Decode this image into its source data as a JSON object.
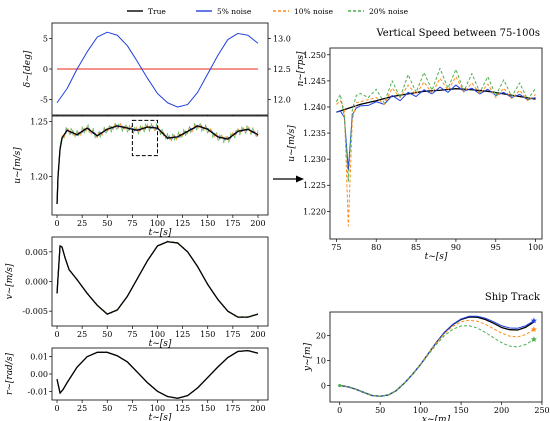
{
  "legend": [
    {
      "name": "True",
      "color": "#000000",
      "dash": "solid"
    },
    {
      "name": "5% noise",
      "color": "#1f3fe0",
      "dash": "solid"
    },
    {
      "name": "10% noise",
      "color": "#ff8c1a",
      "dash": "dashed"
    },
    {
      "name": "20% noise",
      "color": "#4caf50",
      "dash": "dashed"
    }
  ],
  "colors": {
    "delta": "#e8261c",
    "rps": "#1f3fe0"
  },
  "chart_data": [
    {
      "type": "line",
      "id": "delta-n",
      "title": "",
      "xlabel": "t~[s]",
      "ylabel": "δ~[deg]",
      "ylabel_right": "n~[rps]",
      "xlim": [
        -5,
        210
      ],
      "ylim": [
        -7.5,
        7.5
      ],
      "ylim_right": [
        11.75,
        13.25
      ],
      "xticks": [
        "0",
        "25",
        "50",
        "75",
        "100",
        "125",
        "150",
        "175",
        "200"
      ],
      "yticks": [
        "-5",
        "0",
        "5"
      ],
      "yticks_right": [
        "12.0",
        "12.5",
        "13.0"
      ],
      "series": [
        {
          "name": "δ",
          "x": [
            0,
            200
          ],
          "y": [
            0,
            0
          ]
        },
        {
          "name": "n",
          "x": [
            0,
            10,
            20,
            30,
            40,
            50,
            60,
            70,
            80,
            90,
            100,
            110,
            120,
            130,
            140,
            150,
            160,
            170,
            180,
            190,
            200
          ],
          "y": [
            11.95,
            12.18,
            12.5,
            12.78,
            13.02,
            13.1,
            13.05,
            12.88,
            12.62,
            12.35,
            12.1,
            11.95,
            11.88,
            11.92,
            12.12,
            12.42,
            12.72,
            12.98,
            13.08,
            13.05,
            12.92
          ]
        }
      ]
    },
    {
      "type": "line",
      "id": "u",
      "title": "",
      "xlabel": "t~[s]",
      "ylabel": "u~[m/s]",
      "xlim": [
        -5,
        210
      ],
      "ylim": [
        1.165,
        1.255
      ],
      "xticks": [
        "0",
        "25",
        "50",
        "75",
        "100",
        "125",
        "150",
        "175",
        "200"
      ],
      "yticks": [
        "1.20",
        "1.25"
      ],
      "series": [
        {
          "name": "True",
          "x": [
            0,
            1,
            3,
            5,
            10,
            20,
            30,
            40,
            50,
            60,
            70,
            80,
            90,
            100,
            110,
            120,
            130,
            140,
            150,
            160,
            170,
            180,
            190,
            200
          ],
          "y": [
            1.175,
            1.2,
            1.225,
            1.235,
            1.242,
            1.238,
            1.244,
            1.237,
            1.243,
            1.246,
            1.244,
            1.242,
            1.245,
            1.244,
            1.235,
            1.236,
            1.241,
            1.246,
            1.243,
            1.236,
            1.234,
            1.241,
            1.243,
            1.238
          ]
        }
      ]
    },
    {
      "type": "line",
      "id": "v",
      "title": "",
      "xlabel": "t~[s]",
      "ylabel": "v~[m/s]",
      "xlim": [
        -5,
        210
      ],
      "ylim": [
        -0.0075,
        0.0075
      ],
      "xticks": [
        "0",
        "25",
        "50",
        "75",
        "100",
        "125",
        "150",
        "175",
        "200"
      ],
      "yticks": [
        "-0.005",
        "0.000",
        "0.005"
      ],
      "series": [
        {
          "name": "True",
          "x": [
            0,
            3,
            5,
            8,
            12,
            20,
            30,
            40,
            50,
            60,
            70,
            80,
            90,
            100,
            110,
            120,
            130,
            140,
            150,
            160,
            170,
            180,
            190,
            200
          ],
          "y": [
            -0.002,
            0.006,
            0.0058,
            0.004,
            0.002,
            0.0003,
            -0.002,
            -0.004,
            -0.0055,
            -0.0048,
            -0.0025,
            0.0005,
            0.0035,
            0.006,
            0.0067,
            0.0065,
            0.005,
            0.0025,
            -0.0005,
            -0.003,
            -0.005,
            -0.006,
            -0.006,
            -0.0055
          ]
        }
      ]
    },
    {
      "type": "line",
      "id": "r",
      "title": "",
      "xlabel": "t~[s]",
      "ylabel": "r~[rad/s]",
      "xlim": [
        -5,
        210
      ],
      "ylim": [
        -0.015,
        0.015
      ],
      "xticks": [
        "0",
        "25",
        "50",
        "75",
        "100",
        "125",
        "150",
        "175",
        "200"
      ],
      "yticks": [
        "-0.01",
        "0.00",
        "0.01"
      ],
      "series": [
        {
          "name": "True",
          "x": [
            0,
            3,
            6,
            10,
            20,
            30,
            40,
            50,
            60,
            70,
            80,
            90,
            100,
            110,
            120,
            130,
            140,
            150,
            160,
            170,
            180,
            190,
            200
          ],
          "y": [
            -0.003,
            -0.011,
            -0.009,
            -0.005,
            0.004,
            0.01,
            0.0125,
            0.0125,
            0.0105,
            0.007,
            0.001,
            -0.005,
            -0.01,
            -0.013,
            -0.014,
            -0.0125,
            -0.008,
            -0.002,
            0.004,
            0.0095,
            0.013,
            0.0135,
            0.012
          ]
        }
      ]
    },
    {
      "type": "line",
      "id": "speed",
      "title": "Vertical Speed between 75-100s",
      "xlabel": "t~[s]",
      "ylabel": "u~[m/s]",
      "xlim": [
        74.2,
        100.8
      ],
      "ylim": [
        1.2147,
        1.2513
      ],
      "xticks": [
        "75",
        "80",
        "85",
        "90",
        "95",
        "100"
      ],
      "yticks": [
        "1.220",
        "1.225",
        "1.230",
        "1.235",
        "1.240",
        "1.245",
        "1.250"
      ],
      "series": [
        {
          "name": "True",
          "x": [
            75,
            76,
            77,
            78,
            80,
            82,
            84,
            86,
            88,
            90,
            92,
            94,
            96,
            98,
            100
          ],
          "y": [
            1.239,
            1.2395,
            1.24,
            1.2405,
            1.2412,
            1.242,
            1.2425,
            1.243,
            1.2432,
            1.2435,
            1.2433,
            1.243,
            1.2425,
            1.242,
            1.2415
          ]
        },
        {
          "name": "5% noise",
          "x": [
            75,
            75.5,
            76,
            76.5,
            77,
            77.5,
            78,
            79,
            80,
            81,
            82,
            83,
            84,
            85,
            86,
            87,
            88,
            89,
            90,
            91,
            92,
            93,
            94,
            95,
            96,
            97,
            98,
            99,
            100
          ],
          "y": [
            1.239,
            1.2392,
            1.238,
            1.228,
            1.2385,
            1.2398,
            1.2402,
            1.2403,
            1.241,
            1.2405,
            1.2422,
            1.2412,
            1.2428,
            1.242,
            1.2433,
            1.2425,
            1.2438,
            1.2428,
            1.2442,
            1.243,
            1.2436,
            1.2425,
            1.2434,
            1.2422,
            1.2428,
            1.2418,
            1.2424,
            1.2414,
            1.2418
          ]
        },
        {
          "name": "10% noise",
          "x": [
            75,
            75.5,
            76,
            76.5,
            77,
            77.5,
            78,
            79,
            80,
            81,
            82,
            83,
            84,
            85,
            86,
            87,
            88,
            89,
            90,
            91,
            92,
            93,
            94,
            95,
            96,
            97,
            98,
            99,
            100
          ],
          "y": [
            1.2405,
            1.2412,
            1.2395,
            1.2172,
            1.2375,
            1.2408,
            1.241,
            1.2414,
            1.2418,
            1.2405,
            1.2436,
            1.2418,
            1.2442,
            1.2424,
            1.2448,
            1.2426,
            1.2455,
            1.2432,
            1.2458,
            1.2428,
            1.2446,
            1.2425,
            1.2444,
            1.2418,
            1.2436,
            1.2416,
            1.2432,
            1.2412,
            1.2424
          ]
        },
        {
          "name": "20% noise",
          "x": [
            75,
            75.5,
            76,
            76.5,
            77,
            77.5,
            78,
            79,
            80,
            81,
            82,
            83,
            84,
            85,
            86,
            87,
            88,
            89,
            90,
            91,
            92,
            93,
            94,
            95,
            96,
            97,
            98,
            99,
            100
          ],
          "y": [
            1.241,
            1.2424,
            1.238,
            1.2258,
            1.2395,
            1.2422,
            1.2426,
            1.2418,
            1.2434,
            1.2408,
            1.245,
            1.2418,
            1.2462,
            1.2428,
            1.2466,
            1.2432,
            1.2474,
            1.2436,
            1.2472,
            1.243,
            1.2464,
            1.2428,
            1.2458,
            1.2422,
            1.2452,
            1.242,
            1.2446,
            1.2414,
            1.2436
          ]
        }
      ]
    },
    {
      "type": "line",
      "id": "track",
      "title": "Ship Track",
      "xlabel": "x~[m]",
      "ylabel": "y~[m]",
      "xlim": [
        -12,
        250
      ],
      "ylim": [
        -6.6,
        29.5
      ],
      "xticks": [
        "0",
        "50",
        "100",
        "150",
        "200",
        "250"
      ],
      "yticks": [
        "0",
        "10",
        "20"
      ],
      "series": [
        {
          "name": "True",
          "x": [
            0,
            10,
            20,
            30,
            40,
            50,
            60,
            70,
            80,
            90,
            100,
            110,
            120,
            130,
            140,
            150,
            160,
            170,
            180,
            190,
            200,
            210,
            220,
            230,
            240
          ],
          "y": [
            0,
            -0.5,
            -1.5,
            -2.8,
            -4,
            -4.3,
            -3.8,
            -2,
            1,
            4.5,
            8.5,
            13,
            17.5,
            21.5,
            24.5,
            26.5,
            27.5,
            27.4,
            26.5,
            25,
            23.3,
            22.4,
            22.3,
            23.4,
            25.5
          ]
        },
        {
          "name": "5% noise",
          "x": [
            0,
            10,
            20,
            30,
            40,
            50,
            60,
            70,
            80,
            90,
            100,
            110,
            120,
            130,
            140,
            150,
            160,
            170,
            180,
            190,
            200,
            210,
            220,
            230,
            240
          ],
          "y": [
            0,
            -0.5,
            -1.5,
            -2.8,
            -4,
            -4.3,
            -3.8,
            -2,
            1,
            4.5,
            8.5,
            13,
            17.5,
            21.5,
            24.6,
            26.7,
            27.8,
            27.8,
            27,
            25.6,
            24,
            23.1,
            23,
            24,
            26
          ]
        },
        {
          "name": "10% noise",
          "x": [
            0,
            10,
            20,
            30,
            40,
            50,
            60,
            70,
            80,
            90,
            100,
            110,
            120,
            130,
            140,
            150,
            160,
            170,
            180,
            190,
            200,
            210,
            220,
            230,
            240
          ],
          "y": [
            0,
            -0.5,
            -1.5,
            -2.8,
            -4,
            -4.3,
            -3.8,
            -2,
            1,
            4.5,
            8.5,
            13,
            17.3,
            21,
            23.8,
            25.6,
            26.2,
            25.8,
            24.6,
            22.8,
            21,
            19.8,
            19.5,
            20.5,
            22.5
          ]
        },
        {
          "name": "20% noise",
          "x": [
            0,
            10,
            20,
            30,
            40,
            50,
            60,
            70,
            80,
            90,
            100,
            110,
            120,
            130,
            140,
            150,
            160,
            170,
            180,
            190,
            200,
            210,
            220,
            230,
            240
          ],
          "y": [
            0,
            -0.5,
            -1.5,
            -2.8,
            -4,
            -4.3,
            -3.8,
            -2,
            1,
            4.5,
            8.3,
            12.6,
            16.7,
            20.2,
            22.6,
            23.9,
            24,
            23.1,
            21.3,
            19.2,
            17.2,
            15.8,
            15.5,
            16.5,
            18.5
          ]
        }
      ]
    }
  ]
}
